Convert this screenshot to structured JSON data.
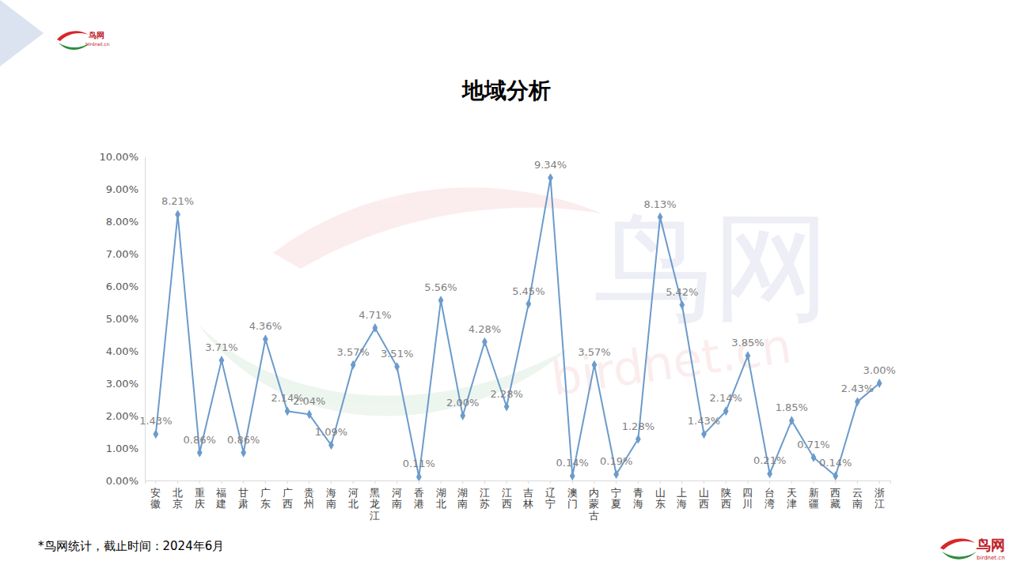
{
  "chart_data": {
    "type": "line",
    "title": "地域分析",
    "categories": [
      "安徽",
      "北京",
      "重庆",
      "福建",
      "甘肃",
      "广东",
      "广西",
      "贵州",
      "海南",
      "河北",
      "黑龙江",
      "河南",
      "香港",
      "湖北",
      "湖南",
      "江苏",
      "江西",
      "吉林",
      "辽宁",
      "澳门",
      "内蒙古",
      "宁夏",
      "青海",
      "山东",
      "上海",
      "山西",
      "陕西",
      "四川",
      "台湾",
      "天津",
      "新疆",
      "西藏",
      "云南",
      "浙江"
    ],
    "values": [
      1.43,
      8.21,
      0.86,
      3.71,
      0.86,
      4.36,
      2.14,
      2.04,
      1.09,
      3.57,
      4.71,
      3.51,
      0.11,
      5.56,
      2.0,
      4.28,
      2.28,
      5.45,
      9.34,
      0.14,
      3.57,
      0.19,
      1.28,
      8.13,
      5.42,
      1.43,
      2.14,
      3.85,
      0.21,
      1.85,
      0.71,
      0.14,
      2.43,
      3.0
    ],
    "value_labels": [
      "1.43%",
      "8.21%",
      "0.86%",
      "3.71%",
      "0.86%",
      "4.36%",
      "2.14%",
      "2.04%",
      "1.09%",
      "3.57%",
      "4.71%",
      "3.51%",
      "0.11%",
      "5.56%",
      "2.00%",
      "4.28%",
      "2.28%",
      "5.45%",
      "9.34%",
      "0.14%",
      "3.57%",
      "0.19%",
      "1.28%",
      "8.13%",
      "5.42%",
      "1.43%",
      "2.14%",
      "3.85%",
      "0.21%",
      "1.85%",
      "0.71%",
      "0.14%",
      "2.43%",
      "3.00%"
    ],
    "color": "#6b9bcb",
    "marker": "diamond",
    "data_labels": true,
    "grid": false,
    "ylim": [
      0,
      10
    ],
    "yticks": [
      {
        "value": 0,
        "label": "0.00%"
      },
      {
        "value": 1,
        "label": "1.00%"
      },
      {
        "value": 2,
        "label": "2.00%"
      },
      {
        "value": 3,
        "label": "3.00%"
      },
      {
        "value": 4,
        "label": "4.00%"
      },
      {
        "value": 5,
        "label": "5.00%"
      },
      {
        "value": 6,
        "label": "6.00%"
      },
      {
        "value": 7,
        "label": "7.00%"
      },
      {
        "value": 8,
        "label": "8.00%"
      },
      {
        "value": 9,
        "label": "9.00%"
      },
      {
        "value": 10,
        "label": "10.00%"
      }
    ]
  },
  "page": {
    "footnote": "*鸟网统计，截止时间：2024年6月",
    "logo_text": "鸟网",
    "logo_url": "birdnet.cn"
  }
}
